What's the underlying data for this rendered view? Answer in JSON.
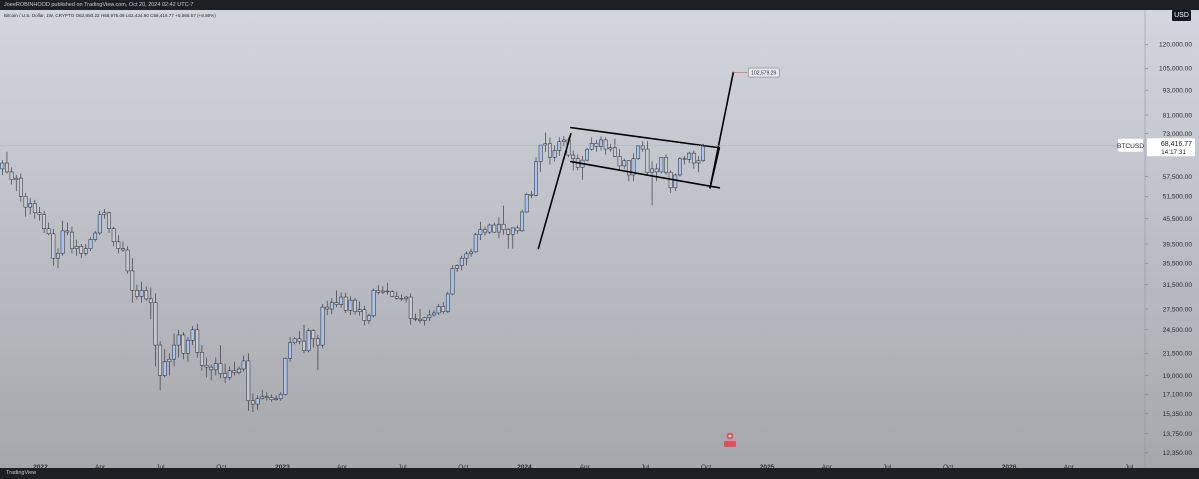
{
  "header": {
    "publish_line": "JoeeROBINHOOD published on TradingView.com, Oct 20, 2024 02:42 UTC-7",
    "ohlc_line": "Bitcoin / U.S. Dollar, 1W, CRYPTO  O62,850.22 H68,976.06 L62,434.90 C68,416.77 +5,566.57 (+8.86%)",
    "currency": "USD"
  },
  "footer": {
    "brand": "TradingView"
  },
  "colors": {
    "background_top": "#d3d6de",
    "background_bottom": "#a5a7ac",
    "up_body": "#a9c4ec",
    "down_body": "#c6c9d1",
    "wick": "#2a2a2e",
    "pattern": "#000000",
    "target_line": "#e05c5c"
  },
  "chart_data": {
    "type": "candlestick",
    "symbol": "BTCUSD",
    "timeframe": "1W",
    "y_scale": "log",
    "ylim": [
      12000,
      130000
    ],
    "xlim": [
      "2021-11-01",
      "2026-07-25"
    ],
    "price_ticks": [
      "120,000.00",
      "105,000.00",
      "93,000.00",
      "81,000.00",
      "73,000.00",
      "57,500.00",
      "51,500.00",
      "45,500.00",
      "39,500.00",
      "35,500.00",
      "31,500.00",
      "27,500.00",
      "24,500.00",
      "21,500.00",
      "19,000.00",
      "17,100.00",
      "15,350.00",
      "13,750.00",
      "12,350.00"
    ],
    "x_ticks": [
      {
        "label": "2022",
        "date": "2022-01-01",
        "bold": true
      },
      {
        "label": "Apr",
        "date": "2022-04-01"
      },
      {
        "label": "Jul",
        "date": "2022-07-01"
      },
      {
        "label": "Oct",
        "date": "2022-10-01"
      },
      {
        "label": "2023",
        "date": "2023-01-01",
        "bold": true
      },
      {
        "label": "Apr",
        "date": "2023-04-01"
      },
      {
        "label": "Jul",
        "date": "2023-07-01"
      },
      {
        "label": "Oct",
        "date": "2023-10-01"
      },
      {
        "label": "2024",
        "date": "2024-01-01",
        "bold": true
      },
      {
        "label": "Apr",
        "date": "2024-04-01"
      },
      {
        "label": "Jul",
        "date": "2024-07-01"
      },
      {
        "label": "Oct",
        "date": "2024-10-01"
      },
      {
        "label": "2025",
        "date": "2025-01-01",
        "bold": true
      },
      {
        "label": "Apr",
        "date": "2025-04-01"
      },
      {
        "label": "Jul",
        "date": "2025-07-01"
      },
      {
        "label": "Oct",
        "date": "2025-10-01"
      },
      {
        "label": "2026",
        "date": "2026-01-01",
        "bold": true
      },
      {
        "label": "Apr",
        "date": "2026-04-01"
      },
      {
        "label": "Jul",
        "date": "2026-07-01"
      }
    ],
    "last_price_label": "68,416.77",
    "countdown_label": "14:17:31",
    "target_label": "102,579.29",
    "target_value": 102579.29,
    "candle_start": "2021-11-01",
    "candle_interval_days": 7,
    "candles": [
      [
        60000,
        63000,
        58000,
        62000
      ],
      [
        62000,
        66000,
        58500,
        59000
      ],
      [
        59000,
        60500,
        55000,
        56500
      ],
      [
        56500,
        58000,
        53000,
        57000
      ],
      [
        57000,
        58500,
        50000,
        51500
      ],
      [
        51500,
        52500,
        46000,
        48500
      ],
      [
        48500,
        51000,
        46500,
        49500
      ],
      [
        49500,
        50500,
        45500,
        47000
      ],
      [
        47000,
        48500,
        45000,
        46500
      ],
      [
        46500,
        47500,
        42000,
        43000
      ],
      [
        43000,
        44500,
        41500,
        41800
      ],
      [
        41800,
        43000,
        35000,
        36500
      ],
      [
        36500,
        38500,
        34500,
        37500
      ],
      [
        37500,
        45000,
        37000,
        42500
      ],
      [
        42500,
        44500,
        41500,
        42200
      ],
      [
        42200,
        43500,
        37500,
        38500
      ],
      [
        38500,
        40500,
        37000,
        39000
      ],
      [
        39000,
        39500,
        36500,
        37500
      ],
      [
        37500,
        39500,
        37000,
        38500
      ],
      [
        38500,
        41000,
        38000,
        40500
      ],
      [
        40500,
        42500,
        40000,
        42000
      ],
      [
        42000,
        47500,
        41500,
        46500
      ],
      [
        46500,
        48000,
        45500,
        47000
      ],
      [
        47000,
        47300,
        42000,
        43000
      ],
      [
        43000,
        43500,
        39000,
        40000
      ],
      [
        40000,
        41500,
        37500,
        38500
      ],
      [
        38500,
        40000,
        37800,
        38200
      ],
      [
        38200,
        39000,
        33500,
        34000
      ],
      [
        34000,
        36500,
        28500,
        30500
      ],
      [
        30500,
        31500,
        29000,
        29500
      ],
      [
        29500,
        32000,
        28500,
        30500
      ],
      [
        30500,
        31200,
        28800,
        29100
      ],
      [
        29100,
        31000,
        26000,
        28500
      ],
      [
        28500,
        30000,
        20000,
        22500
      ],
      [
        22500,
        23000,
        17500,
        19000
      ],
      [
        19000,
        22000,
        18800,
        20500
      ],
      [
        20500,
        21500,
        19000,
        20800
      ],
      [
        20800,
        24000,
        20000,
        22500
      ],
      [
        22500,
        24500,
        21000,
        23800
      ],
      [
        23800,
        24200,
        20800,
        21500
      ],
      [
        21500,
        23500,
        20500,
        23100
      ],
      [
        23100,
        25000,
        22500,
        24500
      ],
      [
        24500,
        25300,
        21000,
        21600
      ],
      [
        21600,
        22500,
        19500,
        20100
      ],
      [
        20100,
        21000,
        18800,
        19900
      ],
      [
        19900,
        20200,
        18500,
        19600
      ],
      [
        19600,
        21000,
        19000,
        20300
      ],
      [
        20300,
        22500,
        18700,
        19200
      ],
      [
        19200,
        20300,
        18200,
        18800
      ],
      [
        18800,
        20000,
        18500,
        19500
      ],
      [
        19500,
        20500,
        19000,
        19300
      ],
      [
        19300,
        20000,
        19100,
        19700
      ],
      [
        19700,
        21200,
        19400,
        20600
      ],
      [
        20600,
        21500,
        15600,
        16500
      ],
      [
        16500,
        17200,
        15500,
        16200
      ],
      [
        16200,
        17000,
        15700,
        16700
      ],
      [
        16700,
        17500,
        16600,
        16900
      ],
      [
        16900,
        17300,
        16500,
        16800
      ],
      [
        16800,
        17100,
        16400,
        16600
      ],
      [
        16600,
        17000,
        16500,
        16700
      ],
      [
        16700,
        17300,
        16500,
        17100
      ],
      [
        17100,
        21000,
        17000,
        20900
      ],
      [
        20900,
        23500,
        20500,
        22800
      ],
      [
        22800,
        23500,
        22600,
        23300
      ],
      [
        23300,
        24300,
        22600,
        23000
      ],
      [
        23000,
        25200,
        21500,
        21800
      ],
      [
        21800,
        24700,
        21600,
        24400
      ],
      [
        24400,
        24600,
        22200,
        23300
      ],
      [
        23300,
        23800,
        19600,
        22500
      ],
      [
        22500,
        28300,
        22100,
        27800
      ],
      [
        27800,
        28800,
        26600,
        27500
      ],
      [
        27500,
        29200,
        26700,
        28500
      ],
      [
        28500,
        30500,
        27800,
        28200
      ],
      [
        28200,
        30200,
        27700,
        29400
      ],
      [
        29400,
        30100,
        26900,
        27300
      ],
      [
        27300,
        29500,
        26600,
        28900
      ],
      [
        28900,
        29200,
        26700,
        27100
      ],
      [
        27100,
        28700,
        26500,
        27400
      ],
      [
        27400,
        28000,
        25100,
        25800
      ],
      [
        25800,
        26800,
        25300,
        26500
      ],
      [
        26500,
        30800,
        26200,
        30500
      ],
      [
        30500,
        31400,
        29800,
        30200
      ],
      [
        30200,
        31200,
        29900,
        30400
      ],
      [
        30400,
        31800,
        29800,
        30300
      ],
      [
        30300,
        30500,
        29400,
        29500
      ],
      [
        29500,
        30300,
        29000,
        29200
      ],
      [
        29200,
        29800,
        28800,
        29100
      ],
      [
        29100,
        29600,
        28500,
        29400
      ],
      [
        29400,
        30000,
        25200,
        26100
      ],
      [
        26100,
        26800,
        25700,
        26000
      ],
      [
        26000,
        27500,
        25400,
        25800
      ],
      [
        25800,
        26300,
        25100,
        26200
      ],
      [
        26200,
        27400,
        25700,
        26600
      ],
      [
        26600,
        27300,
        26400,
        26900
      ],
      [
        26900,
        28300,
        26600,
        27900
      ],
      [
        27900,
        28600,
        26800,
        27100
      ],
      [
        27100,
        30300,
        26900,
        29900
      ],
      [
        29900,
        35100,
        29700,
        34500
      ],
      [
        34500,
        35300,
        33800,
        35000
      ],
      [
        35000,
        37000,
        34100,
        36500
      ],
      [
        36500,
        37900,
        35100,
        37400
      ],
      [
        37400,
        38500,
        36800,
        37800
      ],
      [
        37800,
        42000,
        37600,
        41600
      ],
      [
        41600,
        44700,
        40400,
        42800
      ],
      [
        42800,
        43500,
        41400,
        42200
      ],
      [
        42200,
        44300,
        41800,
        43900
      ],
      [
        43900,
        44500,
        42000,
        42200
      ],
      [
        42200,
        45800,
        40800,
        44100
      ],
      [
        44100,
        48900,
        41600,
        42800
      ],
      [
        42800,
        43200,
        38500,
        41700
      ],
      [
        41700,
        43300,
        38500,
        43200
      ],
      [
        43200,
        43800,
        41800,
        42500
      ],
      [
        42500,
        47800,
        42300,
        47200
      ],
      [
        47200,
        52500,
        47000,
        52100
      ],
      [
        52100,
        53000,
        51000,
        51800
      ],
      [
        51800,
        64000,
        51500,
        62500
      ],
      [
        62500,
        68000,
        59000,
        68500
      ],
      [
        68500,
        73500,
        66000,
        69000
      ],
      [
        69000,
        71500,
        61500,
        64000
      ],
      [
        64000,
        68500,
        62500,
        66500
      ],
      [
        66500,
        71500,
        64500,
        69800
      ],
      [
        69800,
        72000,
        68000,
        70500
      ],
      [
        70500,
        71500,
        64000,
        64800
      ],
      [
        64800,
        66500,
        59500,
        63500
      ],
      [
        63500,
        65000,
        59500,
        60500
      ],
      [
        60500,
        64500,
        56500,
        63000
      ],
      [
        63000,
        67500,
        62500,
        66900
      ],
      [
        66900,
        71500,
        66500,
        69200
      ],
      [
        69200,
        70500,
        66000,
        68000
      ],
      [
        68000,
        71900,
        66500,
        70500
      ],
      [
        70500,
        71500,
        65000,
        67000
      ],
      [
        67000,
        69000,
        66000,
        67500
      ],
      [
        67500,
        71000,
        64000,
        64300
      ],
      [
        64300,
        67000,
        60000,
        61000
      ],
      [
        61000,
        63500,
        60000,
        62800
      ],
      [
        62800,
        63000,
        56000,
        58000
      ],
      [
        58000,
        65500,
        56000,
        63500
      ],
      [
        63500,
        68500,
        63000,
        68200
      ],
      [
        68200,
        70000,
        66000,
        67000
      ],
      [
        67000,
        70000,
        58000,
        58800
      ],
      [
        58800,
        62500,
        49000,
        60000
      ],
      [
        60000,
        61800,
        56000,
        59000
      ],
      [
        59000,
        64000,
        58500,
        64000
      ],
      [
        64000,
        65000,
        58000,
        58900
      ],
      [
        58900,
        59500,
        52500,
        54000
      ],
      [
        54000,
        58500,
        53000,
        58000
      ],
      [
        58000,
        64000,
        57500,
        63500
      ],
      [
        63500,
        64500,
        61500,
        63300
      ],
      [
        63300,
        66000,
        62000,
        65500
      ],
      [
        65500,
        66500,
        60000,
        62000
      ],
      [
        62000,
        64500,
        58900,
        62800
      ],
      [
        62850,
        68976,
        62435,
        68417
      ]
    ],
    "flagpole": {
      "from": [
        "2024-01-22",
        38500
      ],
      "to": [
        "2024-03-11",
        73000
      ]
    },
    "channel_upper": {
      "from": [
        "2024-03-11",
        75500
      ],
      "to": [
        "2024-10-21",
        67500
      ]
    },
    "channel_lower": {
      "from": [
        "2024-03-11",
        62500
      ],
      "to": [
        "2024-10-21",
        54000
      ]
    },
    "channel_right_edge": {
      "from": [
        "2024-10-21",
        67500
      ],
      "to": [
        "2024-10-07",
        54000
      ]
    },
    "target_leg": {
      "from": [
        "2024-10-07",
        54000
      ],
      "to": [
        "2024-11-11",
        102579
      ]
    },
    "target_line": {
      "from": [
        "2024-11-11",
        102579
      ],
      "to": [
        "2024-12-02",
        102579
      ]
    }
  }
}
